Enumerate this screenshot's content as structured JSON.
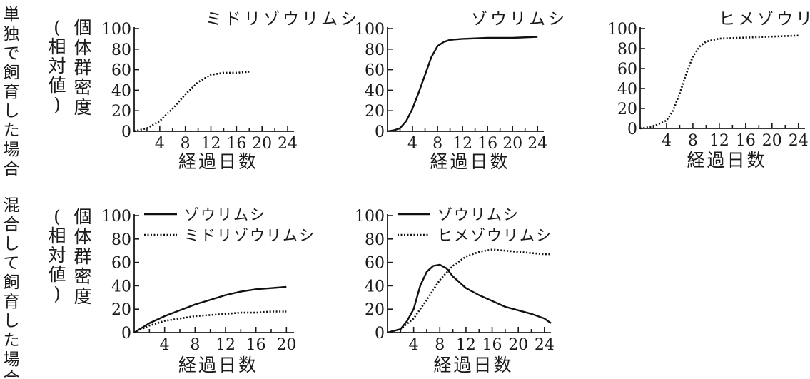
{
  "row_labels": [
    "単独で飼育した場合",
    "混合して飼育した場合"
  ],
  "ylabel": "個体群密度",
  "ylabel_sub": "(相対値)",
  "colors": {
    "ink": "#1a1a1a",
    "background": "#ffffff"
  },
  "chart_data": [
    {
      "id": "c1",
      "type": "line",
      "row": 0,
      "title": "ミドリゾウリムシ",
      "xlabel": "経過日数",
      "ylabel": "個体群密度(相対値)",
      "xlim": [
        0,
        25
      ],
      "ylim": [
        0,
        100
      ],
      "xticks": [
        4,
        8,
        12,
        16,
        20,
        24
      ],
      "yticks": [
        0,
        20,
        40,
        60,
        80,
        100
      ],
      "minor_xticks": [
        2,
        6,
        10,
        14,
        18,
        22
      ],
      "grid": false,
      "series": [
        {
          "style": "dotted",
          "x": [
            0,
            2,
            4,
            6,
            8,
            10,
            12,
            14,
            16,
            18
          ],
          "y": [
            0,
            3,
            10,
            22,
            36,
            48,
            55,
            57,
            57,
            58
          ]
        }
      ]
    },
    {
      "id": "c2",
      "type": "line",
      "row": 0,
      "title": "ゾウリムシ",
      "xlabel": "経過日数",
      "xlim": [
        0,
        25
      ],
      "ylim": [
        0,
        100
      ],
      "xticks": [
        4,
        8,
        12,
        16,
        20,
        24
      ],
      "yticks": [
        0,
        20,
        40,
        60,
        80,
        100
      ],
      "minor_xticks": [
        2,
        6,
        10,
        14,
        18,
        22
      ],
      "grid": false,
      "series": [
        {
          "style": "solid",
          "x": [
            0,
            1,
            2,
            3,
            4,
            5,
            6,
            7,
            8,
            9,
            10,
            12,
            16,
            20,
            24
          ],
          "y": [
            0,
            1,
            3,
            10,
            22,
            38,
            55,
            72,
            83,
            87,
            89,
            90,
            91,
            91,
            92
          ]
        }
      ]
    },
    {
      "id": "c3",
      "type": "line",
      "row": 0,
      "title": "ヒメゾウリムシ",
      "xlabel": "経過日数",
      "xlim": [
        0,
        25
      ],
      "ylim": [
        0,
        100
      ],
      "xticks": [
        4,
        8,
        12,
        16,
        20,
        24
      ],
      "yticks": [
        0,
        20,
        40,
        60,
        80,
        100
      ],
      "minor_xticks": [
        2,
        6,
        10,
        14,
        18,
        22
      ],
      "grid": false,
      "series": [
        {
          "style": "dotted",
          "x": [
            0,
            2,
            4,
            5,
            6,
            7,
            8,
            9,
            10,
            12,
            16,
            20,
            24
          ],
          "y": [
            0,
            2,
            8,
            18,
            35,
            55,
            72,
            82,
            87,
            90,
            91,
            92,
            93
          ]
        }
      ]
    },
    {
      "id": "c4",
      "type": "line",
      "row": 1,
      "title": "",
      "xlabel": "経過日数",
      "ylabel": "個体群密度(相対値)",
      "xlim": [
        0,
        21
      ],
      "ylim": [
        0,
        100
      ],
      "xticks": [
        4,
        8,
        12,
        16,
        20
      ],
      "yticks": [
        0,
        20,
        40,
        60,
        80,
        100
      ],
      "minor_xticks": [
        2,
        6,
        10,
        14,
        18
      ],
      "grid": false,
      "legend": {
        "position": "top-left"
      },
      "series": [
        {
          "name": "ゾウリムシ",
          "style": "solid",
          "x": [
            0,
            2,
            4,
            6,
            8,
            10,
            12,
            14,
            16,
            18,
            20
          ],
          "y": [
            0,
            8,
            14,
            19,
            24,
            28,
            32,
            35,
            37,
            38,
            39
          ]
        },
        {
          "name": "ミドリゾウリムシ",
          "style": "dotted",
          "x": [
            0,
            2,
            4,
            6,
            8,
            10,
            12,
            14,
            16,
            18,
            20
          ],
          "y": [
            0,
            6,
            10,
            12,
            14,
            15,
            16,
            17,
            17,
            18,
            18
          ]
        }
      ]
    },
    {
      "id": "c5",
      "type": "line",
      "row": 1,
      "title": "",
      "xlabel": "経過日数",
      "xlim": [
        0,
        25
      ],
      "ylim": [
        0,
        100
      ],
      "xticks": [
        4,
        8,
        12,
        16,
        20,
        24
      ],
      "yticks": [
        0,
        20,
        40,
        60,
        80,
        100
      ],
      "minor_xticks": [
        2,
        6,
        10,
        14,
        18,
        22
      ],
      "grid": false,
      "legend": {
        "position": "top-left"
      },
      "series": [
        {
          "name": "ゾウリムシ",
          "style": "solid",
          "x": [
            0,
            2,
            3,
            4,
            5,
            6,
            7,
            8,
            9,
            10,
            12,
            14,
            16,
            18,
            20,
            22,
            24,
            25
          ],
          "y": [
            0,
            3,
            10,
            20,
            40,
            52,
            57,
            58,
            55,
            48,
            38,
            32,
            27,
            22,
            19,
            16,
            12,
            8
          ]
        },
        {
          "name": "ヒメゾウリムシ",
          "style": "dotted",
          "x": [
            0,
            2,
            4,
            6,
            8,
            10,
            12,
            14,
            16,
            18,
            20,
            22,
            24,
            25
          ],
          "y": [
            0,
            3,
            12,
            28,
            45,
            57,
            65,
            69,
            71,
            70,
            69,
            68,
            67,
            67
          ]
        }
      ]
    }
  ]
}
